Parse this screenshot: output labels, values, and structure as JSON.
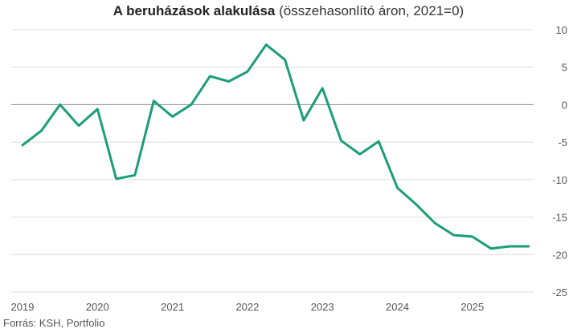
{
  "chart_data": {
    "type": "line",
    "title_bold": "A beruházások alakulása",
    "title_rest": " (összehasonlító áron, 2021=0)",
    "source": "Forrás: KSH, Portfolio",
    "xlabel": "",
    "ylabel": "",
    "ylim": [
      -25,
      10
    ],
    "y_ticks": [
      10,
      5,
      0,
      -5,
      -10,
      -15,
      -20,
      -25
    ],
    "y_axis_position": "right",
    "x_tick_labels": [
      "2019",
      "2020",
      "2021",
      "2022",
      "2023",
      "2024",
      "2025"
    ],
    "grid": true,
    "legend": "none",
    "zero_line": true,
    "line_color": "#1a9e78",
    "series": [
      {
        "x": [
          2019.0,
          2019.25,
          2019.5,
          2019.75,
          2020.0,
          2020.25,
          2020.5,
          2020.75,
          2021.0,
          2021.25,
          2021.5,
          2021.75,
          2022.0,
          2022.25,
          2022.5,
          2022.75,
          2023.0,
          2023.25,
          2023.5,
          2023.75,
          2024.0,
          2024.25,
          2024.5,
          2024.75,
          2025.0,
          2025.25,
          2025.5,
          2025.75
        ],
        "values": [
          -5.4,
          -3.5,
          0.0,
          -2.8,
          -0.6,
          -9.9,
          -9.4,
          0.5,
          -1.6,
          0.0,
          3.8,
          3.1,
          4.4,
          8.0,
          6.0,
          -2.1,
          2.2,
          -4.8,
          -6.6,
          -4.9,
          -11.1,
          -13.3,
          -15.8,
          -17.4,
          -17.6,
          -19.2,
          -18.9,
          -18.9
        ]
      }
    ]
  }
}
